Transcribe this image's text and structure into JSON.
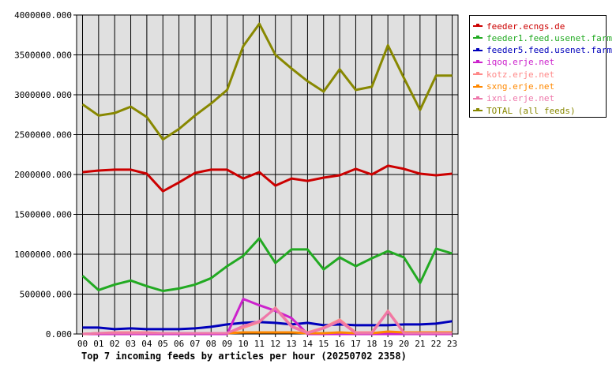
{
  "chart_data": {
    "type": "line",
    "title": "Top 7 incoming feeds by articles per hour (20250702 2358)",
    "xlabel": "",
    "ylabel": "",
    "categories": [
      "00",
      "01",
      "02",
      "03",
      "04",
      "05",
      "06",
      "07",
      "08",
      "09",
      "10",
      "11",
      "12",
      "13",
      "14",
      "15",
      "16",
      "17",
      "18",
      "19",
      "20",
      "21",
      "22",
      "23"
    ],
    "ylim": [
      0,
      4000000
    ],
    "yticks": [
      "0.000",
      "500000.000",
      "1000000.000",
      "1500000.000",
      "2000000.000",
      "2500000.000",
      "3000000.000",
      "3500000.000",
      "4000000.000"
    ],
    "grid": true,
    "legend_position": "right",
    "series": [
      {
        "name": "feeder.ecngs.de",
        "color": "#cc0000",
        "values": [
          2030000,
          2050000,
          2060000,
          2060000,
          2010000,
          1790000,
          1900000,
          2020000,
          2060000,
          2060000,
          1950000,
          2030000,
          1860000,
          1950000,
          1920000,
          1960000,
          1990000,
          2070000,
          2000000,
          2110000,
          2070000,
          2010000,
          1990000,
          2010000
        ]
      },
      {
        "name": "feeder1.feed.usenet.farm",
        "color": "#22aa22",
        "values": [
          730000,
          550000,
          620000,
          670000,
          600000,
          540000,
          570000,
          620000,
          700000,
          850000,
          980000,
          1200000,
          890000,
          1060000,
          1060000,
          810000,
          960000,
          850000,
          950000,
          1040000,
          960000,
          640000,
          1070000,
          1010000
        ]
      },
      {
        "name": "feeder5.feed.usenet.farm",
        "color": "#0000bb",
        "values": [
          80000,
          80000,
          60000,
          70000,
          60000,
          60000,
          60000,
          70000,
          90000,
          120000,
          140000,
          150000,
          140000,
          120000,
          140000,
          110000,
          120000,
          110000,
          110000,
          110000,
          120000,
          120000,
          130000,
          160000
        ]
      },
      {
        "name": "iqoq.erje.net",
        "color": "#cc22cc",
        "values": [
          0,
          0,
          0,
          0,
          0,
          0,
          0,
          0,
          0,
          0,
          440000,
          360000,
          290000,
          200000,
          0,
          0,
          0,
          0,
          0,
          0,
          0,
          0,
          0,
          0
        ]
      },
      {
        "name": "kotz.erje.net",
        "color": "#ff8888",
        "values": [
          0,
          10000,
          20000,
          20000,
          20000,
          10000,
          10000,
          10000,
          10000,
          10000,
          80000,
          150000,
          330000,
          100000,
          20000,
          80000,
          180000,
          20000,
          20000,
          290000,
          20000,
          20000,
          20000,
          20000
        ]
      },
      {
        "name": "sxng.erje.net",
        "color": "#ff8800",
        "values": [
          0,
          10000,
          10000,
          10000,
          10000,
          10000,
          10000,
          10000,
          10000,
          10000,
          20000,
          20000,
          20000,
          20000,
          10000,
          10000,
          20000,
          10000,
          10000,
          30000,
          20000,
          20000,
          20000,
          20000
        ]
      },
      {
        "name": "ixni.erje.net",
        "color": "#ee77aa",
        "values": [
          0,
          10000,
          10000,
          10000,
          10000,
          10000,
          10000,
          10000,
          10000,
          10000,
          100000,
          160000,
          320000,
          90000,
          10000,
          70000,
          160000,
          10000,
          10000,
          280000,
          10000,
          10000,
          10000,
          10000
        ]
      },
      {
        "name": "TOTAL (all feeds)",
        "color": "#888800",
        "values": [
          2880000,
          2740000,
          2770000,
          2850000,
          2720000,
          2440000,
          2570000,
          2740000,
          2890000,
          3060000,
          3610000,
          3890000,
          3500000,
          3330000,
          3170000,
          3040000,
          3320000,
          3060000,
          3100000,
          3620000,
          3210000,
          2810000,
          3240000,
          3240000
        ]
      }
    ]
  }
}
